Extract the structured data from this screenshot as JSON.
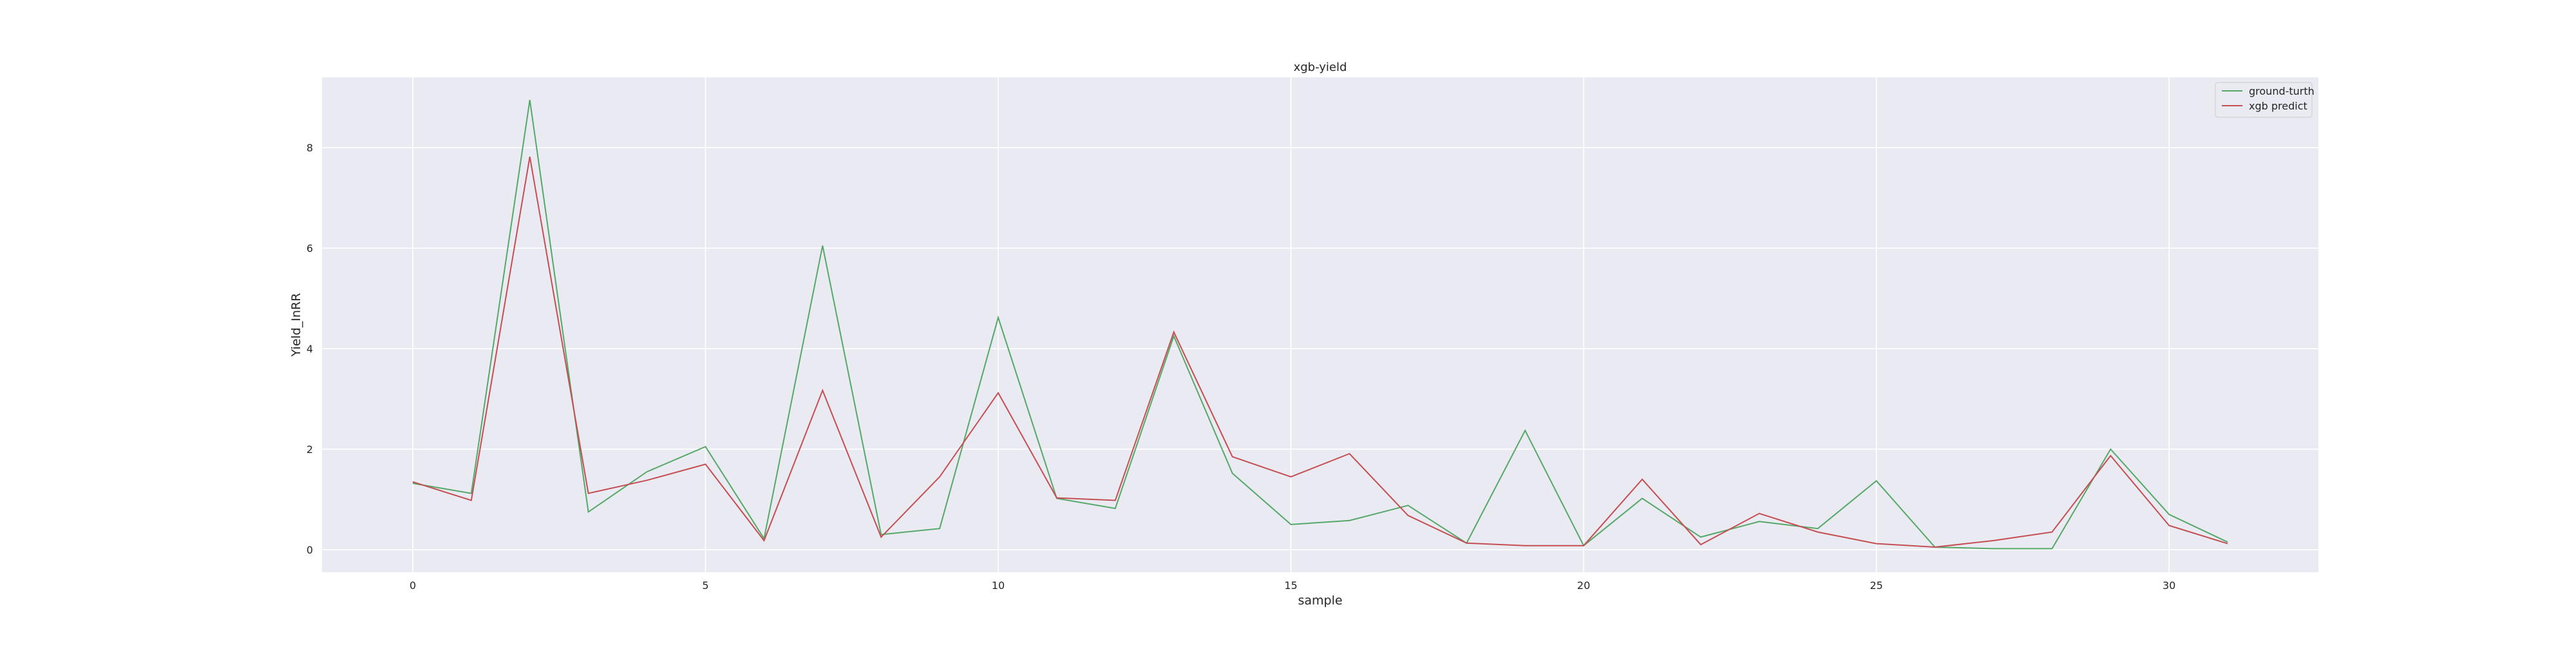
{
  "chart_data": {
    "type": "line",
    "title": "xgb-yield",
    "xlabel": "sample",
    "ylabel": "Yield_InRR",
    "x": [
      0,
      1,
      2,
      3,
      4,
      5,
      6,
      7,
      8,
      9,
      10,
      11,
      12,
      13,
      14,
      15,
      16,
      17,
      18,
      19,
      20,
      21,
      22,
      23,
      24,
      25,
      26,
      27,
      28,
      29,
      30,
      31
    ],
    "xlim": [
      -1.55,
      32.55
    ],
    "ylim": [
      -0.45,
      9.4
    ],
    "xticks": [
      0,
      5,
      10,
      15,
      20,
      25,
      30
    ],
    "yticks": [
      0,
      2,
      4,
      6,
      8
    ],
    "grid": true,
    "legend_position": "top-right",
    "series": [
      {
        "name": "ground-turth",
        "color": "#55a868",
        "values": [
          1.32,
          1.12,
          8.95,
          0.75,
          1.55,
          2.05,
          0.22,
          6.05,
          0.3,
          0.42,
          4.62,
          1.02,
          0.82,
          4.25,
          1.52,
          0.5,
          0.58,
          0.88,
          0.13,
          2.37,
          0.08,
          1.02,
          0.25,
          0.56,
          0.42,
          1.37,
          0.05,
          0.02,
          0.02,
          2.0,
          0.7,
          0.15
        ]
      },
      {
        "name": "xgb predict",
        "color": "#c44e52",
        "values": [
          1.35,
          0.98,
          7.82,
          1.12,
          1.38,
          1.7,
          0.18,
          3.17,
          0.25,
          1.45,
          3.12,
          1.03,
          0.98,
          4.33,
          1.85,
          1.45,
          1.91,
          0.68,
          0.13,
          0.08,
          0.08,
          1.4,
          0.1,
          0.72,
          0.35,
          0.12,
          0.05,
          0.18,
          0.35,
          1.87,
          0.48,
          0.12
        ]
      }
    ]
  }
}
